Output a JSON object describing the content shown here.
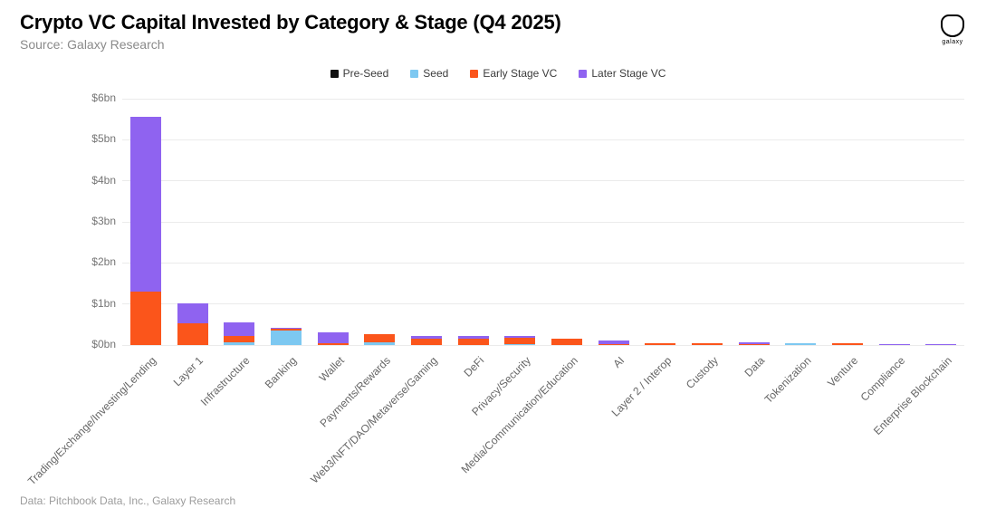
{
  "header": {
    "title": "Crypto VC Capital Invested by Category & Stage (Q4 2025)",
    "subtitle": "Source: Galaxy Research",
    "logo_text": "galaxy"
  },
  "footer": {
    "credit": "Data: Pitchbook Data, Inc., Galaxy Research"
  },
  "colors": {
    "pre_seed": "#111111",
    "seed": "#7dc8f1",
    "early_stage": "#fb551b",
    "later_stage": "#8f63f0",
    "gridline": "#ebebeb"
  },
  "chart_data": {
    "type": "bar",
    "stacked": true,
    "title": "Crypto VC Capital Invested by Category & Stage (Q4 2025)",
    "unit": "USD billions",
    "ylim": [
      0,
      6
    ],
    "yticks": [
      "$0bn",
      "$1bn",
      "$2bn",
      "$3bn",
      "$4bn",
      "$5bn",
      "$6bn"
    ],
    "grid": true,
    "legend_position": "top-center",
    "categories": [
      "Trading/Exchange/Investing/Lending",
      "Layer 1",
      "Infrastructure",
      "Banking",
      "Wallet",
      "Payments/Rewards",
      "Web3/NFT/DAO/Metaverse/Gaming",
      "DeFi",
      "Privacy/Security",
      "Media/Communication/Education",
      "AI",
      "Layer 2 / Interop",
      "Custody",
      "Data",
      "Tokenization",
      "Venture",
      "Compliance",
      "Enterprise Blockchain"
    ],
    "series": [
      {
        "name": "Pre-Seed",
        "color": "#111111",
        "values": [
          0,
          0,
          0,
          0,
          0,
          0,
          0,
          0,
          0,
          0,
          0,
          0,
          0,
          0,
          0,
          0,
          0,
          0
        ]
      },
      {
        "name": "Seed",
        "color": "#7dc8f1",
        "values": [
          0,
          0,
          0.06,
          0.35,
          0,
          0.06,
          0,
          0,
          0.03,
          0,
          0,
          0,
          0,
          0,
          0.05,
          0,
          0,
          0
        ]
      },
      {
        "name": "Early Stage VC",
        "color": "#fb551b",
        "values": [
          1.3,
          0.52,
          0.16,
          0.05,
          0.05,
          0.2,
          0.16,
          0.16,
          0.15,
          0.16,
          0.01,
          0.05,
          0.05,
          0.03,
          0,
          0.04,
          0,
          0
        ]
      },
      {
        "name": "Later Stage VC",
        "color": "#8f63f0",
        "values": [
          4.25,
          0.5,
          0.33,
          0.02,
          0.25,
          0,
          0.07,
          0.05,
          0.04,
          0,
          0.09,
          0,
          0,
          0.03,
          0,
          0,
          0.03,
          0.02
        ]
      }
    ]
  }
}
